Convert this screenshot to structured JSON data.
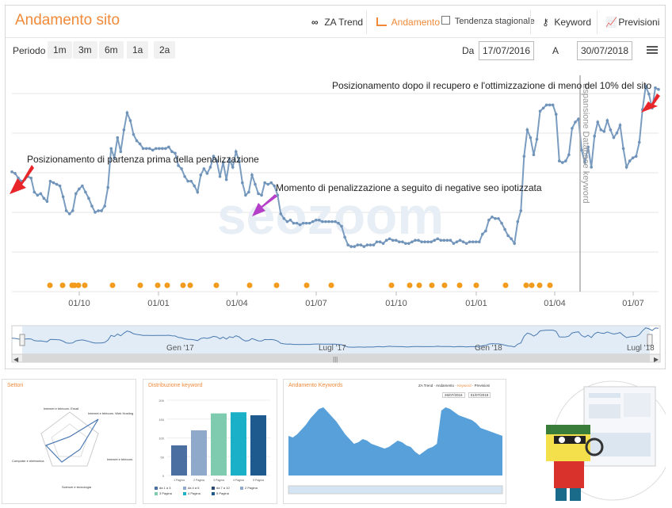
{
  "header": {
    "title": "Andamento sito",
    "tabs": [
      {
        "label": "ZA Trend",
        "icon": "infinity-icon"
      },
      {
        "label": "Andamento",
        "icon": "area-chart-icon",
        "active": true
      },
      {
        "label": "Tendenza stagionale",
        "icon": "checkbox-icon"
      },
      {
        "label": "Keyword",
        "icon": "key-icon"
      },
      {
        "label": "Previsioni",
        "icon": "line-chart-icon"
      }
    ]
  },
  "range": {
    "periodo_label": "Periodo",
    "buttons": [
      "1m",
      "3m",
      "6m",
      "1a",
      "2a"
    ],
    "from_label": "Da",
    "from_value": "17/07/2016",
    "to_label": "A",
    "to_value": "30/07/2018"
  },
  "annotations": {
    "start": "Posizionamento di partenza prima della penalizzazione",
    "penalty": "Momento di penalizzazione a seguito di negative seo ipotizzata",
    "recovery": "Posizionamento dopo il recupero e l'ottimizzazione di meno del 10% del sito",
    "vertical_line": "Espansione Database keyword"
  },
  "watermark": "seozoom",
  "colors": {
    "accent": "#f08a3a",
    "line": "#7a9cc0",
    "arrow_red": "#e8262a",
    "arrow_purple": "#b53fc8"
  },
  "chart_data": {
    "type": "line",
    "title": "",
    "x_ticks": [
      "01/10",
      "01/01",
      "01/04",
      "01/07",
      "01/10",
      "01/01",
      "01/04",
      "01/07"
    ],
    "y": [
      0.77,
      0.76,
      0.73,
      0.71,
      0.72,
      0.74,
      0.73,
      0.64,
      0.62,
      0.63,
      0.6,
      0.58,
      0.71,
      0.7,
      0.69,
      0.68,
      0.61,
      0.52,
      0.5,
      0.52,
      0.63,
      0.66,
      0.68,
      0.64,
      0.6,
      0.55,
      0.51,
      0.52,
      0.52,
      0.55,
      0.67,
      0.92,
      0.86,
      0.99,
      0.9,
      1.04,
      1.15,
      1.1,
      1.01,
      0.97,
      0.95,
      0.92,
      0.92,
      0.92,
      0.91,
      0.92,
      0.92,
      0.92,
      0.92,
      0.93,
      0.9,
      0.89,
      0.81,
      0.79,
      0.74,
      0.71,
      0.71,
      0.68,
      0.64,
      0.75,
      0.79,
      0.76,
      0.8,
      0.87,
      0.84,
      0.74,
      0.83,
      0.72,
      0.85,
      0.8,
      0.9,
      0.84,
      0.7,
      0.62,
      0.64,
      0.75,
      0.69,
      0.63,
      0.62,
      0.7,
      0.69,
      0.7,
      0.68,
      0.62,
      0.5,
      0.47,
      0.45,
      0.46,
      0.44,
      0.44,
      0.43,
      0.44,
      0.44,
      0.44,
      0.45,
      0.46,
      0.46,
      0.45,
      0.45,
      0.45,
      0.45,
      0.45,
      0.44,
      0.42,
      0.35,
      0.3,
      0.29,
      0.29,
      0.3,
      0.3,
      0.29,
      0.3,
      0.3,
      0.3,
      0.32,
      0.32,
      0.31,
      0.33,
      0.34,
      0.33,
      0.33,
      0.32,
      0.32,
      0.31,
      0.31,
      0.32,
      0.33,
      0.33,
      0.32,
      0.32,
      0.32,
      0.32,
      0.33,
      0.34,
      0.33,
      0.33,
      0.33,
      0.33,
      0.31,
      0.32,
      0.33,
      0.32,
      0.31,
      0.32,
      0.32,
      0.32,
      0.32,
      0.37,
      0.39,
      0.46,
      0.48,
      0.47,
      0.47,
      0.44,
      0.4,
      0.36,
      0.34,
      0.31,
      0.45,
      0.52,
      0.87,
      1.04,
      0.99,
      0.88,
      0.98,
      1.16,
      1.18,
      1.2,
      1.2,
      1.2,
      1.14,
      0.84,
      0.83,
      0.84,
      0.88,
      1.05,
      1.09,
      1.11,
      0.91,
      0.83,
      0.93,
      0.8,
      1.0,
      1.09,
      1.04,
      1.03,
      1.1,
      1.04,
      0.99,
      1.02,
      1.07,
      0.92,
      0.8,
      0.84,
      0.86,
      0.87,
      0.96,
      1.17,
      1.32,
      1.27,
      1.18,
      1.31,
      1.3
    ],
    "x_range": [
      "17/07/2016",
      "30/07/2018"
    ],
    "vertical_marker_label": "Espansione Database keyword",
    "navigator_labels": [
      "Gen '17",
      "Lugl '17",
      "Gen '18",
      "Lugl '18"
    ],
    "event_markers_color": "#f29b1d"
  },
  "mini_panels": {
    "settori": {
      "title": "Settori",
      "labels": [
        "Internet e telecomunicazioni\nEmail",
        "Internet e telecomunicazioni\nWeb Hosting",
        "Internet e telecomunicazioni\nTelecomunicazioni",
        "Scienze e tecnologia\nRicerca",
        "Computer e elettronica\nSoftware"
      ]
    },
    "distribuzione": {
      "title": "Distribuzione keyword",
      "categories": [
        "1 Pagina",
        "2 Pagina",
        "3 Pagina",
        "4 Pagina",
        "5 Pagina"
      ],
      "values": [
        80,
        120,
        165,
        168,
        160
      ],
      "legend": [
        "da 1 a 3",
        "da 4 a 6",
        "da 7 a 10",
        "2 Pagina",
        "3 Pagina",
        "4 Pagina",
        "5 Pagina"
      ]
    },
    "andamento_keywords": {
      "title": "Andamento Keywords",
      "tabs": [
        "ZA Trend",
        "Andamento",
        "Keyword",
        "Previsioni"
      ],
      "from_value": "26/07/2016",
      "to_value": "01/07/2018"
    }
  }
}
